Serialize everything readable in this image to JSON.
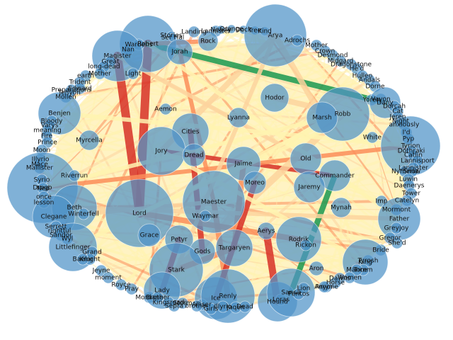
{
  "graph": {
    "type": "force-directed word co-occurrence network",
    "node_color": "#4f93c8",
    "edge_color_scale": [
      "#fff3b0",
      "#fdd49e",
      "#fc8d59",
      "#d73027",
      "#1a9850"
    ],
    "nodes": [
      {
        "label": "Robert",
        "size": 40
      },
      {
        "label": "Stories",
        "size": 6
      },
      {
        "label": "Ser Hal",
        "size": 6
      },
      {
        "label": "Landing",
        "size": 8
      },
      {
        "label": "Lannister",
        "size": 8
      },
      {
        "label": "Nearly",
        "size": 6
      },
      {
        "label": "Orange",
        "size": 6
      },
      {
        "label": "Dock",
        "size": 6
      },
      {
        "label": "Tree",
        "size": 6
      },
      {
        "label": "Kind",
        "size": 6
      },
      {
        "label": "Arya",
        "size": 44
      },
      {
        "label": "Adrochs",
        "size": 8
      },
      {
        "label": "Mother",
        "size": 8
      },
      {
        "label": "Crown",
        "size": 8
      },
      {
        "label": "Desmond",
        "size": 8
      },
      {
        "label": "Midgard",
        "size": 8
      },
      {
        "label": "Dragonstone",
        "size": 8
      },
      {
        "label": "He'd",
        "size": 8
      },
      {
        "label": "Hullen",
        "size": 8
      },
      {
        "label": "Andals",
        "size": 8
      },
      {
        "label": "Dorne",
        "size": 8
      },
      {
        "label": "Wardens",
        "size": 8
      },
      {
        "label": "Nan",
        "size": 8
      },
      {
        "label": "Magister",
        "size": 36
      },
      {
        "label": "Great",
        "size": 8
      },
      {
        "label": "long-dead",
        "size": 8
      },
      {
        "label": "Jorah",
        "size": 18
      },
      {
        "label": "Rock",
        "size": 14
      },
      {
        "label": "Light",
        "size": 8
      },
      {
        "label": "earth",
        "size": 8
      },
      {
        "label": "Mother",
        "size": 8
      },
      {
        "label": "Trident",
        "size": 8
      },
      {
        "label": "Edward",
        "size": 8
      },
      {
        "label": "Preparations",
        "size": 8
      },
      {
        "label": "Tenyon",
        "size": 8
      },
      {
        "label": "Mollen",
        "size": 8
      },
      {
        "label": "Hodor",
        "size": 20
      },
      {
        "label": "Yoren",
        "size": 8
      },
      {
        "label": "Vayon",
        "size": 8
      },
      {
        "label": "Dany",
        "size": 22
      },
      {
        "label": "Dorcah",
        "size": 8
      },
      {
        "label": "Cat",
        "size": 8
      },
      {
        "label": "Jeren",
        "size": 8
      },
      {
        "label": "Night",
        "size": 8
      },
      {
        "label": "anxiously",
        "size": 8
      },
      {
        "label": "I'd",
        "size": 8
      },
      {
        "label": "Pyp",
        "size": 8
      },
      {
        "label": "Tyrion",
        "size": 42
      },
      {
        "label": "Dothraki",
        "size": 8
      },
      {
        "label": "Catlin",
        "size": 8
      },
      {
        "label": "Lannisport",
        "size": 8
      },
      {
        "label": "Lannister",
        "size": 8
      },
      {
        "label": "Nymeria",
        "size": 8
      },
      {
        "label": "Snow",
        "size": 8
      },
      {
        "label": "Luwin",
        "size": 8
      },
      {
        "label": "Daenerys",
        "size": 8
      },
      {
        "label": "Tower",
        "size": 8
      },
      {
        "label": "Catelyn",
        "size": 8
      },
      {
        "label": "Imp",
        "size": 8
      },
      {
        "label": "Mormont",
        "size": 8
      },
      {
        "label": "Father",
        "size": 30
      },
      {
        "label": "Robb",
        "size": 38
      },
      {
        "label": "Marsh",
        "size": 22
      },
      {
        "label": "White",
        "size": 8
      },
      {
        "label": "Aemon",
        "size": 8
      },
      {
        "label": "Lyanna",
        "size": 14
      },
      {
        "label": "Benjen",
        "size": 30
      },
      {
        "label": "Bloody",
        "size": 8
      },
      {
        "label": "Varys",
        "size": 8
      },
      {
        "label": "meaning",
        "size": 8
      },
      {
        "label": "Fire",
        "size": 8
      },
      {
        "label": "Prince",
        "size": 8
      },
      {
        "label": "Moon",
        "size": 8
      },
      {
        "label": "Myrcella",
        "size": 14
      },
      {
        "label": "Cities",
        "size": 26
      },
      {
        "label": "Jory",
        "size": 34
      },
      {
        "label": "Dread",
        "size": 16
      },
      {
        "label": "Old",
        "size": 22
      },
      {
        "label": "Jaime",
        "size": 24
      },
      {
        "label": "Commander",
        "size": 22
      },
      {
        "label": "Mynah",
        "size": 14
      },
      {
        "label": "Illyrio",
        "size": 8
      },
      {
        "label": "Mace",
        "size": 8
      },
      {
        "label": "Mallister",
        "size": 8
      },
      {
        "label": "Drogo",
        "size": 50
      },
      {
        "label": "Riverrun",
        "size": 8
      },
      {
        "label": "Moreo",
        "size": 16
      },
      {
        "label": "Jaremy",
        "size": 22
      },
      {
        "label": "Syrio",
        "size": 8
      },
      {
        "label": "Ned",
        "size": 8
      },
      {
        "label": "once",
        "size": 8
      },
      {
        "label": "lesson",
        "size": 8
      },
      {
        "label": "Beth",
        "size": 32
      },
      {
        "label": "Winterfell",
        "size": 8
      },
      {
        "label": "Lord",
        "size": 48
      },
      {
        "label": "Maester",
        "size": 44
      },
      {
        "label": "Waymar",
        "size": 8
      },
      {
        "label": "Clegane",
        "size": 30
      },
      {
        "label": "Serrett",
        "size": 8
      },
      {
        "label": "rightful",
        "size": 8
      },
      {
        "label": "Sandor",
        "size": 8
      },
      {
        "label": "Wyl",
        "size": 8
      },
      {
        "label": "Littlefinger",
        "size": 34
      },
      {
        "label": "Grace",
        "size": 16
      },
      {
        "label": "Petyr",
        "size": 20
      },
      {
        "label": "Aerys",
        "size": 12
      },
      {
        "label": "Rodrik",
        "size": 32
      },
      {
        "label": "Rickon",
        "size": 8
      },
      {
        "label": "Greyjoy",
        "size": 8
      },
      {
        "label": "Gregor",
        "size": 8
      },
      {
        "label": "She'd",
        "size": 8
      },
      {
        "label": "Bride",
        "size": 8
      },
      {
        "label": "Tyrosh",
        "size": 8
      },
      {
        "label": "King",
        "size": 32
      },
      {
        "label": "Tomm",
        "size": 8
      },
      {
        "label": "Mance",
        "size": 8
      },
      {
        "label": "Women",
        "size": 8
      },
      {
        "label": "Dawns",
        "size": 8
      },
      {
        "label": "Horse",
        "size": 8
      },
      {
        "label": "Anyone",
        "size": 8
      },
      {
        "label": "Gods",
        "size": 18
      },
      {
        "label": "Targaryen",
        "size": 26
      },
      {
        "label": "Stark",
        "size": 38
      },
      {
        "label": "Grand",
        "size": 8
      },
      {
        "label": "Knight",
        "size": 8
      },
      {
        "label": "Baelor",
        "size": 8
      },
      {
        "label": "Jeyne",
        "size": 8
      },
      {
        "label": "moment",
        "size": 8
      },
      {
        "label": "Royce",
        "size": 8
      },
      {
        "label": "Pray",
        "size": 8
      },
      {
        "label": "Mordane",
        "size": 8
      },
      {
        "label": "Lady",
        "size": 26
      },
      {
        "label": "Brother",
        "size": 8
      },
      {
        "label": "Kingsroad",
        "size": 8
      },
      {
        "label": "Septa",
        "size": 8
      },
      {
        "label": "Storm",
        "size": 8
      },
      {
        "label": "Ice",
        "size": 30
      },
      {
        "label": "Alliser",
        "size": 8
      },
      {
        "label": "brother",
        "size": 8
      },
      {
        "label": "Renly",
        "size": 38
      },
      {
        "label": "Girls",
        "size": 8
      },
      {
        "label": "Illyrio",
        "size": 8
      },
      {
        "label": "Jaqen",
        "size": 8
      },
      {
        "label": "Dead",
        "size": 8
      },
      {
        "label": "Hound",
        "size": 28
      },
      {
        "label": "Loras",
        "size": 8
      },
      {
        "label": "Sansa",
        "size": 34
      },
      {
        "label": "Pentos",
        "size": 8
      },
      {
        "label": "Lion",
        "size": 8
      },
      {
        "label": "Aron",
        "size": 10
      },
      {
        "label": "Arryn",
        "size": 8
      }
    ],
    "edges": [
      {
        "from": "Robert",
        "to": "Lord",
        "weight": 5,
        "color": "#d73027"
      },
      {
        "from": "Magister",
        "to": "Lord",
        "weight": 5,
        "color": "#d73027"
      },
      {
        "from": "Jory",
        "to": "Commander",
        "weight": 2,
        "color": "#d73027"
      },
      {
        "from": "Drogo",
        "to": "Tyrion",
        "weight": 2,
        "color": "#fc8d59"
      },
      {
        "from": "Robb",
        "to": "Stark",
        "weight": 4,
        "color": "#fdd49e"
      },
      {
        "from": "Arya",
        "to": "Jory",
        "weight": 3,
        "color": "#fdd49e"
      },
      {
        "from": "Cities",
        "to": "Gods",
        "weight": 3,
        "color": "#d73027"
      },
      {
        "from": "Jaime",
        "to": "Targaryen",
        "weight": 3,
        "color": "#fc8d59"
      },
      {
        "from": "Aerys",
        "to": "Hound",
        "weight": 4,
        "color": "#d73027"
      },
      {
        "from": "Hodor",
        "to": "Robb",
        "weight": 3,
        "color": "#fdd49e"
      },
      {
        "from": "Robert",
        "to": "Dany",
        "weight": 3,
        "color": "#1a9850"
      },
      {
        "from": "Robert",
        "to": "Rock",
        "weight": 2,
        "color": "#fc8d59"
      },
      {
        "from": "Maester",
        "to": "Renly",
        "weight": 3,
        "color": "#fc8d59"
      },
      {
        "from": "Sansa",
        "to": "Commander",
        "weight": 3,
        "color": "#1a9850"
      },
      {
        "from": "Jorah",
        "to": "Maester",
        "weight": 2,
        "color": "#fc8d59"
      },
      {
        "from": "Arya",
        "to": "Marsh",
        "weight": 3,
        "color": "#fdd49e"
      },
      {
        "from": "Magister",
        "to": "Old",
        "weight": 2,
        "color": "#fdd49e"
      },
      {
        "from": "Lord",
        "to": "Rodrik",
        "weight": 3,
        "color": "#fc8d59"
      },
      {
        "from": "Beth",
        "to": "Father",
        "weight": 2,
        "color": "#fdd49e"
      },
      {
        "from": "Benjen",
        "to": "Tyrion",
        "weight": 2,
        "color": "#fff3b0"
      },
      {
        "from": "Stark",
        "to": "Targaryen",
        "weight": 3,
        "color": "#fc8d59"
      },
      {
        "from": "Lady",
        "to": "Petyr",
        "weight": 3,
        "color": "#d73027"
      },
      {
        "from": "Clegane",
        "to": "Maester",
        "weight": 2,
        "color": "#fdd49e"
      },
      {
        "from": "Littlefinger",
        "to": "Robb",
        "weight": 2,
        "color": "#fff3b0"
      },
      {
        "from": "Ice",
        "to": "Moreo",
        "weight": 3,
        "color": "#d73027"
      },
      {
        "from": "King",
        "to": "Jory",
        "weight": 2,
        "color": "#fff3b0"
      },
      {
        "from": "Drogo",
        "to": "Robb",
        "weight": 2,
        "color": "#fff3b0"
      },
      {
        "from": "Robert",
        "to": "Father",
        "weight": 2,
        "color": "#fff3b0"
      },
      {
        "from": "Arya",
        "to": "Stark",
        "weight": 2,
        "color": "#fdd49e"
      },
      {
        "from": "Dany",
        "to": "Lord",
        "weight": 2,
        "color": "#fff3b0"
      }
    ]
  }
}
